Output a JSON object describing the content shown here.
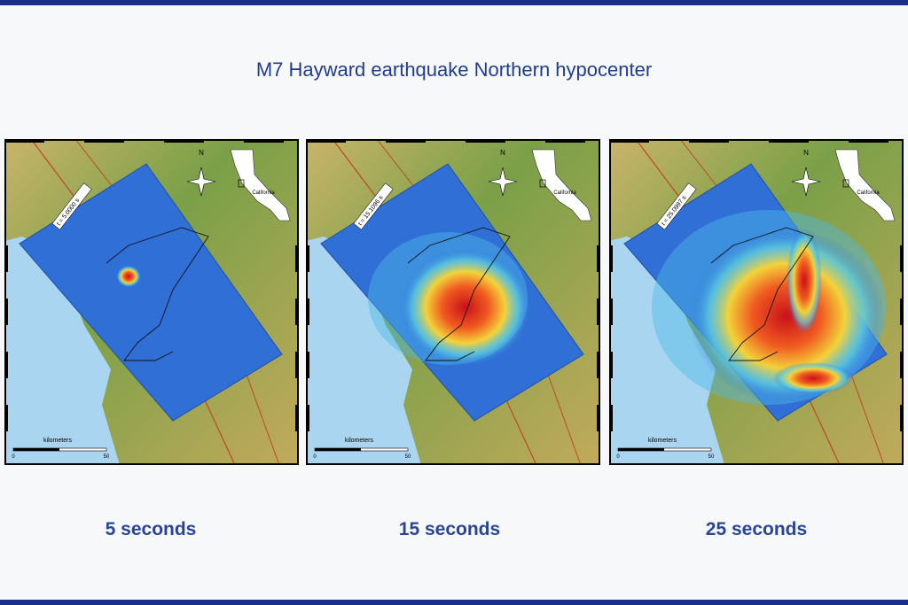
{
  "title": "M7 Hayward earthquake Northern hypocenter",
  "panels": [
    {
      "time_label": "t = 5.0000 s",
      "north": "N",
      "state": "California",
      "scale_title": "kilometers",
      "scale_min": "0",
      "scale_max": "50",
      "caption": "5 seconds"
    },
    {
      "time_label": "t = 15.1096 s",
      "north": "N",
      "state": "California",
      "scale_title": "kilometers",
      "scale_min": "0",
      "scale_max": "50",
      "caption": "15 seconds"
    },
    {
      "time_label": "t = 25.0997 s",
      "north": "N",
      "state": "California",
      "scale_title": "kilometers",
      "scale_min": "0",
      "scale_max": "50",
      "caption": "25 seconds"
    }
  ]
}
